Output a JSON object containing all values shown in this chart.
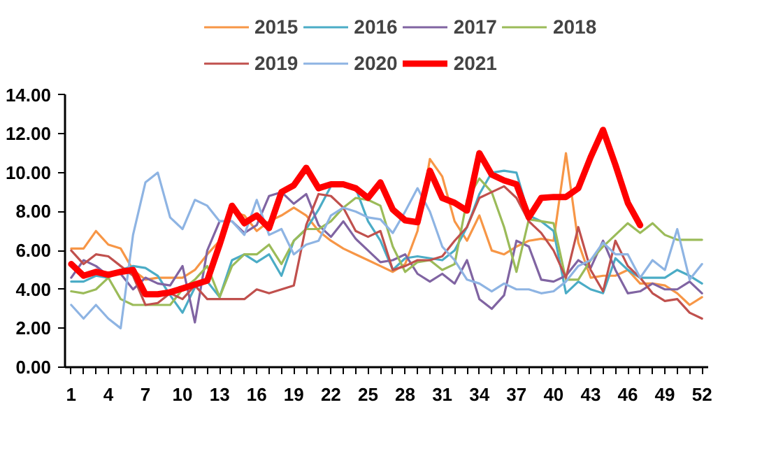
{
  "chart_data": {
    "type": "line",
    "x": [
      1,
      2,
      3,
      4,
      5,
      6,
      7,
      8,
      9,
      10,
      11,
      12,
      13,
      14,
      15,
      16,
      17,
      18,
      19,
      20,
      21,
      22,
      23,
      24,
      25,
      26,
      27,
      28,
      29,
      30,
      31,
      32,
      33,
      34,
      35,
      36,
      37,
      38,
      39,
      40,
      41,
      42,
      43,
      44,
      45,
      46,
      47,
      48,
      49,
      50,
      51,
      52
    ],
    "xlim": [
      0.5,
      52.5
    ],
    "xticks": [
      1,
      {
        "value": 2,
        "label": null
      },
      {
        "value": 3,
        "label": null
      },
      4,
      {
        "value": 5,
        "label": null
      },
      {
        "value": 6,
        "label": null
      },
      7,
      {
        "value": 8,
        "label": null
      },
      {
        "value": 9,
        "label": null
      },
      10,
      {
        "value": 11,
        "label": null
      },
      {
        "value": 12,
        "label": null
      },
      13,
      {
        "value": 14,
        "label": null
      },
      {
        "value": 15,
        "label": null
      },
      16,
      {
        "value": 17,
        "label": null
      },
      {
        "value": 18,
        "label": null
      },
      19,
      {
        "value": 20,
        "label": null
      },
      {
        "value": 21,
        "label": null
      },
      22,
      {
        "value": 23,
        "label": null
      },
      {
        "value": 24,
        "label": null
      },
      25,
      {
        "value": 26,
        "label": null
      },
      {
        "value": 27,
        "label": null
      },
      28,
      {
        "value": 29,
        "label": null
      },
      {
        "value": 30,
        "label": null
      },
      31,
      {
        "value": 32,
        "label": null
      },
      {
        "value": 33,
        "label": null
      },
      34,
      {
        "value": 35,
        "label": null
      },
      {
        "value": 36,
        "label": null
      },
      37,
      {
        "value": 38,
        "label": null
      },
      {
        "value": 39,
        "label": null
      },
      40,
      {
        "value": 41,
        "label": null
      },
      {
        "value": 42,
        "label": null
      },
      43,
      {
        "value": 44,
        "label": null
      },
      {
        "value": 45,
        "label": null
      },
      46,
      {
        "value": 47,
        "label": null
      },
      {
        "value": 48,
        "label": null
      },
      49,
      {
        "value": 50,
        "label": null
      },
      {
        "value": 51,
        "label": null
      },
      52
    ],
    "ylim": [
      0,
      14
    ],
    "yticks": [
      {
        "value": 0,
        "label": "0.00"
      },
      {
        "value": 2,
        "label": "2.00"
      },
      {
        "value": 4,
        "label": "4.00"
      },
      {
        "value": 6,
        "label": "6.00"
      },
      {
        "value": 8,
        "label": "8.00"
      },
      {
        "value": 10,
        "label": "10.00"
      },
      {
        "value": 12,
        "label": "12.00"
      },
      {
        "value": 14,
        "label": "14.00"
      }
    ],
    "grid": false,
    "legend": "top",
    "marker": "none",
    "line_style": "solid",
    "series": [
      {
        "name": "2015",
        "color": "#f79646",
        "values": [
          6.1,
          6.1,
          7.0,
          6.3,
          6.1,
          5.0,
          4.5,
          4.6,
          4.6,
          4.6,
          5.0,
          5.8,
          6.5,
          8.0,
          7.8,
          7.0,
          7.5,
          7.8,
          8.2,
          7.8,
          7.0,
          6.5,
          6.1,
          5.8,
          5.5,
          5.2,
          4.9,
          5.3,
          7.0,
          10.7,
          9.8,
          7.5,
          6.5,
          7.8,
          6.0,
          5.8,
          6.2,
          6.5,
          6.6,
          6.5,
          11.0,
          6.4,
          4.6,
          4.7,
          4.7,
          5.0,
          4.3,
          4.3,
          4.2,
          3.8,
          3.2,
          3.6
        ]
      },
      {
        "name": "2016",
        "color": "#4bacc6",
        "values": [
          4.4,
          4.4,
          4.7,
          4.6,
          5.0,
          5.2,
          5.1,
          4.7,
          3.7,
          2.8,
          4.1,
          4.4,
          3.6,
          5.5,
          5.8,
          5.4,
          5.8,
          4.7,
          6.5,
          7.1,
          8.1,
          9.3,
          9.3,
          9.2,
          7.5,
          6.5,
          5.0,
          5.6,
          5.7,
          5.6,
          5.5,
          6.0,
          7.2,
          8.9,
          10.0,
          10.1,
          10.0,
          7.8,
          7.5,
          7.0,
          3.8,
          4.4,
          4.0,
          3.8,
          5.6,
          5.0,
          4.6,
          4.6,
          4.6,
          5.0,
          4.7,
          4.3
        ]
      },
      {
        "name": "2017",
        "color": "#8064a2",
        "values": [
          4.6,
          5.5,
          5.2,
          4.7,
          4.8,
          4.0,
          4.6,
          4.3,
          4.2,
          5.2,
          2.3,
          6.0,
          7.5,
          7.5,
          6.9,
          7.3,
          8.8,
          9.0,
          8.4,
          8.9,
          7.3,
          6.7,
          7.5,
          6.6,
          6.0,
          5.4,
          5.5,
          5.8,
          4.8,
          4.4,
          4.8,
          4.3,
          5.5,
          3.5,
          3.0,
          3.7,
          6.5,
          6.2,
          4.5,
          4.4,
          4.7,
          5.5,
          5.1,
          6.5,
          5.0,
          3.8,
          3.9,
          4.3,
          4.0,
          4.0,
          4.4,
          3.8
        ]
      },
      {
        "name": "2018",
        "color": "#9bbb59",
        "values": [
          3.9,
          3.8,
          4.0,
          4.6,
          3.5,
          3.2,
          3.2,
          3.2,
          3.2,
          4.0,
          4.5,
          5.2,
          3.6,
          5.2,
          5.8,
          5.8,
          6.3,
          5.3,
          6.5,
          7.1,
          7.1,
          7.5,
          8.2,
          8.7,
          8.6,
          8.3,
          6.2,
          4.9,
          5.4,
          5.5,
          5.0,
          5.3,
          8.6,
          9.7,
          9.0,
          7.2,
          4.9,
          7.6,
          7.5,
          7.4,
          4.5,
          4.5,
          5.5,
          6.2,
          6.8,
          7.4,
          6.9,
          7.4,
          6.8,
          6.55,
          6.55,
          6.55
        ]
      },
      {
        "name": "2019",
        "color": "#c0504d",
        "values": [
          6.0,
          5.3,
          5.8,
          5.7,
          5.2,
          4.7,
          3.2,
          3.3,
          3.8,
          3.5,
          4.2,
          3.5,
          3.5,
          3.5,
          3.5,
          4.0,
          3.8,
          4.0,
          4.2,
          7.3,
          8.9,
          8.8,
          8.2,
          7.0,
          6.7,
          7.0,
          5.0,
          5.2,
          5.5,
          5.5,
          5.7,
          6.5,
          7.2,
          8.7,
          9.0,
          9.3,
          8.7,
          7.5,
          6.9,
          6.0,
          4.6,
          7.2,
          5.0,
          3.9,
          6.5,
          5.2,
          4.6,
          3.8,
          3.4,
          3.5,
          2.8,
          2.5
        ]
      },
      {
        "name": "2020",
        "color": "#8eb4e3",
        "values": [
          3.2,
          2.5,
          3.2,
          2.5,
          2.0,
          6.8,
          9.5,
          10.0,
          7.7,
          7.1,
          8.6,
          8.3,
          7.5,
          7.5,
          6.8,
          8.6,
          6.8,
          7.1,
          5.8,
          6.3,
          6.5,
          7.8,
          8.2,
          8.0,
          7.7,
          7.6,
          6.9,
          8.0,
          9.2,
          8.0,
          6.2,
          5.5,
          4.5,
          4.3,
          3.9,
          4.3,
          4.0,
          4.0,
          3.8,
          3.9,
          4.4,
          5.2,
          5.5,
          6.4,
          5.8,
          5.8,
          4.6,
          5.5,
          5.0,
          7.1,
          4.5,
          5.3
        ]
      },
      {
        "name": "2021",
        "color": "#ff0000",
        "x": [
          1,
          2,
          3,
          4,
          5,
          6,
          7,
          8,
          9,
          10,
          11,
          12,
          13,
          14,
          15,
          16,
          17,
          18,
          19,
          20,
          21,
          22,
          23,
          24,
          25,
          26,
          27,
          28,
          29,
          30,
          31,
          32,
          33,
          34,
          35,
          36,
          37,
          38,
          39,
          40,
          41,
          42,
          43,
          44,
          45,
          46,
          47
        ],
        "values": [
          5.3,
          4.7,
          4.9,
          4.75,
          4.9,
          5.0,
          3.75,
          3.75,
          3.85,
          4.05,
          4.25,
          4.45,
          6.3,
          8.3,
          7.4,
          7.8,
          7.15,
          9.0,
          9.35,
          10.25,
          9.2,
          9.4,
          9.4,
          9.2,
          8.7,
          9.5,
          8.1,
          7.55,
          7.45,
          10.1,
          8.7,
          8.45,
          8.05,
          11.0,
          9.9,
          9.6,
          9.4,
          7.7,
          8.7,
          8.75,
          8.75,
          9.2,
          10.8,
          12.2,
          10.4,
          8.45,
          7.3
        ]
      }
    ]
  }
}
